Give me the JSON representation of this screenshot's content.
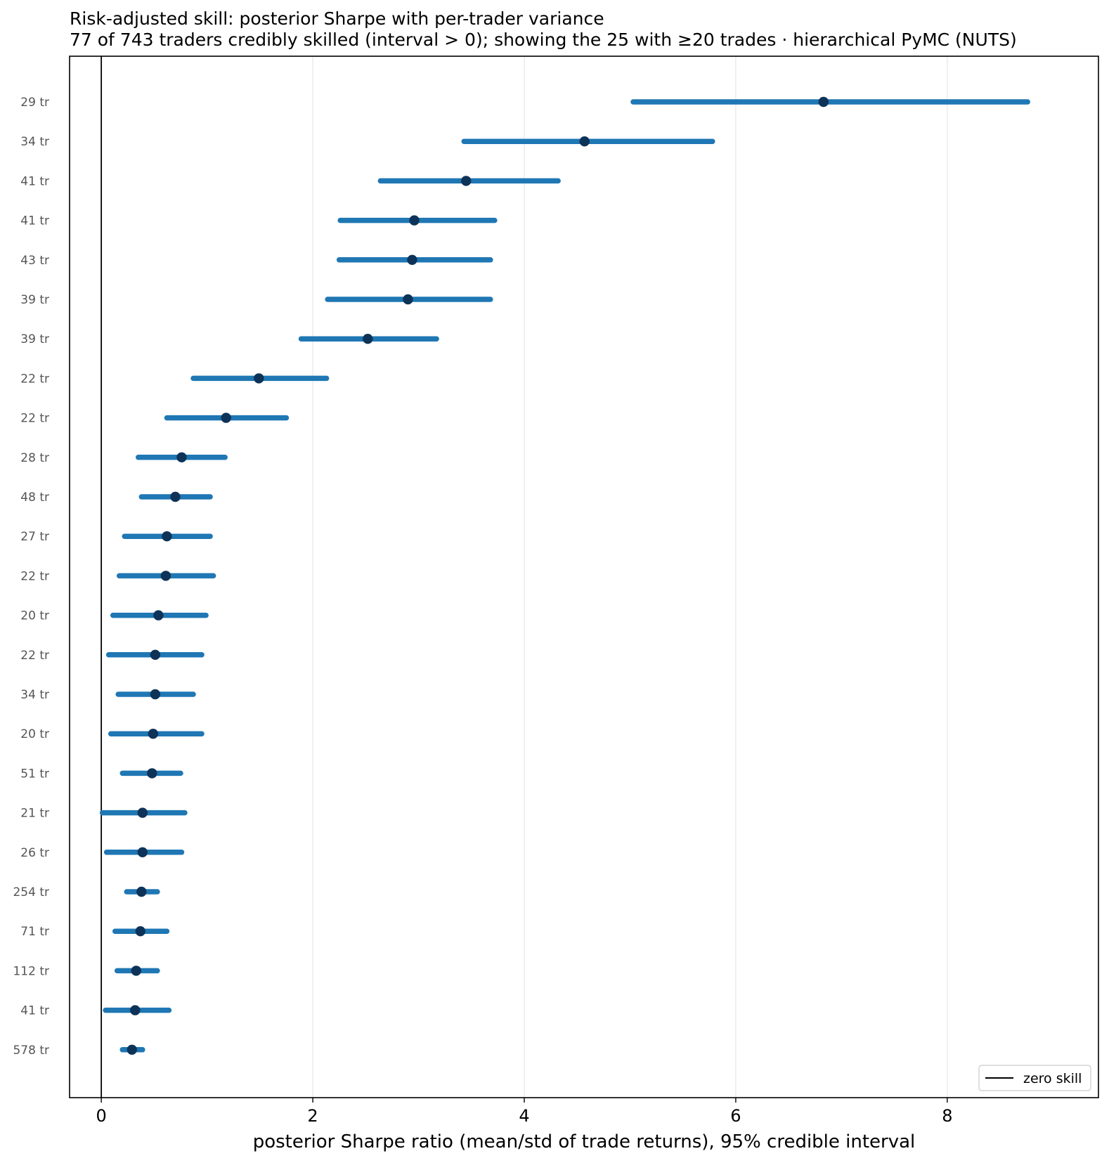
{
  "chart_data": {
    "type": "interval",
    "title": "Risk-adjusted skill: posterior Sharpe with per-trader variance",
    "subtitle": "77 of 743 traders credibly skilled (interval > 0); showing the 25 with ≥20 trades · hierarchical PyMC (NUTS)",
    "xlabel": "posterior Sharpe ratio (mean/std of trade returns), 95% credible interval",
    "ylabel": "",
    "xlim": [
      -0.3,
      9.43
    ],
    "xticks": [
      0,
      2,
      4,
      6,
      8
    ],
    "xtick_labels": [
      "0",
      "2",
      "4",
      "6",
      "8"
    ],
    "grid": "vertical",
    "reference_line": {
      "x": 0,
      "label": "zero skill"
    },
    "legend": {
      "position": "bottom-right",
      "entries": [
        "zero skill"
      ]
    },
    "colors": {
      "interval": "#1f77b4",
      "point": "#0d3358",
      "reference": "#000000",
      "grid": "#e6e6e6"
    },
    "categories": [
      "29 tr",
      "34 tr",
      "41 tr",
      "41 tr",
      "43 tr",
      "39 tr",
      "39 tr",
      "22 tr",
      "22 tr",
      "28 tr",
      "48 tr",
      "27 tr",
      "22 tr",
      "20 tr",
      "22 tr",
      "34 tr",
      "20 tr",
      "51 tr",
      "21 tr",
      "26 tr",
      "254 tr",
      "71 tr",
      "112 tr",
      "41 tr",
      "578 tr"
    ],
    "intervals": [
      {
        "low": 5.03,
        "mean": 6.83,
        "high": 8.76
      },
      {
        "low": 3.43,
        "mean": 4.57,
        "high": 5.78
      },
      {
        "low": 2.64,
        "mean": 3.45,
        "high": 4.32
      },
      {
        "low": 2.26,
        "mean": 2.96,
        "high": 3.72
      },
      {
        "low": 2.25,
        "mean": 2.94,
        "high": 3.68
      },
      {
        "low": 2.14,
        "mean": 2.9,
        "high": 3.68
      },
      {
        "low": 1.89,
        "mean": 2.52,
        "high": 3.17
      },
      {
        "low": 0.87,
        "mean": 1.49,
        "high": 2.13
      },
      {
        "low": 0.62,
        "mean": 1.18,
        "high": 1.75
      },
      {
        "low": 0.35,
        "mean": 0.76,
        "high": 1.17
      },
      {
        "low": 0.38,
        "mean": 0.7,
        "high": 1.03
      },
      {
        "low": 0.22,
        "mean": 0.62,
        "high": 1.03
      },
      {
        "low": 0.17,
        "mean": 0.61,
        "high": 1.06
      },
      {
        "low": 0.11,
        "mean": 0.54,
        "high": 0.99
      },
      {
        "low": 0.07,
        "mean": 0.51,
        "high": 0.95
      },
      {
        "low": 0.16,
        "mean": 0.51,
        "high": 0.87
      },
      {
        "low": 0.09,
        "mean": 0.49,
        "high": 0.95
      },
      {
        "low": 0.2,
        "mean": 0.48,
        "high": 0.75
      },
      {
        "low": 0.01,
        "mean": 0.39,
        "high": 0.79
      },
      {
        "low": 0.05,
        "mean": 0.39,
        "high": 0.76
      },
      {
        "low": 0.24,
        "mean": 0.38,
        "high": 0.53
      },
      {
        "low": 0.13,
        "mean": 0.37,
        "high": 0.62
      },
      {
        "low": 0.15,
        "mean": 0.33,
        "high": 0.53
      },
      {
        "low": 0.04,
        "mean": 0.32,
        "high": 0.64
      },
      {
        "low": 0.2,
        "mean": 0.29,
        "high": 0.39
      }
    ]
  }
}
